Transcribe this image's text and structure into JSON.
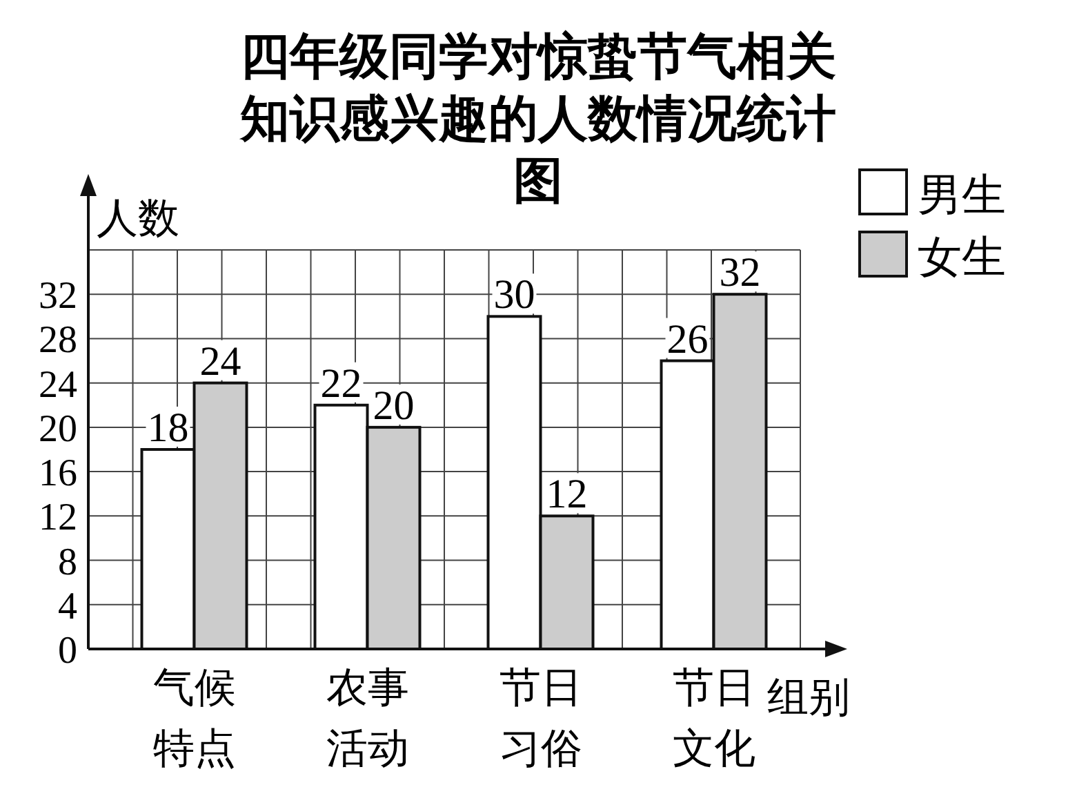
{
  "chart_data": {
    "type": "bar",
    "title": "四年级同学对惊蛰节气相关知识感兴趣的人数情况统计图",
    "categories": [
      "气候特点",
      "农事活动",
      "节日习俗",
      "节日文化"
    ],
    "series": [
      {
        "name": "男生",
        "color": "#ffffff",
        "values": [
          18,
          22,
          30,
          26
        ]
      },
      {
        "name": "女生",
        "color": "#cccccc",
        "values": [
          24,
          20,
          12,
          32
        ]
      }
    ],
    "ylabel": "人数",
    "xlabel": "组别",
    "ylim": [
      0,
      36
    ],
    "yticks": [
      0,
      4,
      8,
      12,
      16,
      20,
      24,
      28,
      32
    ],
    "grid": true,
    "legend": "top right",
    "data_labels": true
  }
}
